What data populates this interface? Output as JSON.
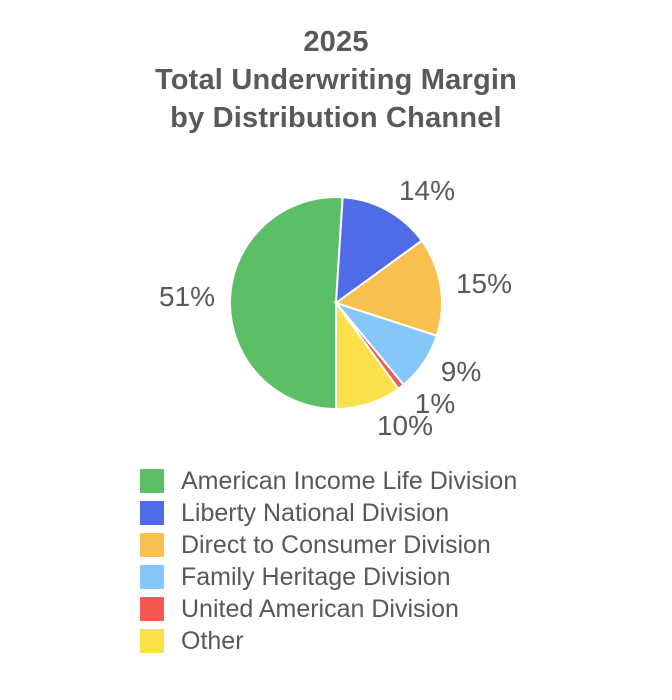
{
  "title": {
    "line1": "2025",
    "line2": "Total Underwriting Margin",
    "line3": "by Distribution Channel"
  },
  "chart_data": {
    "type": "pie",
    "title": "2025 Total Underwriting Margin by Distribution Channel",
    "start_angle_deg": 180,
    "direction": "clockwise",
    "total": 100,
    "legend_position": "bottom-left",
    "background_color": "#FFFFFF",
    "text_color": "#58595B",
    "slice_gap_color": "#FFFFFF",
    "slices": [
      {
        "name": "American Income Life Division",
        "value": 51,
        "label": "51%",
        "color": "#5CBE66"
      },
      {
        "name": "Liberty National Division",
        "value": 14,
        "label": "14%",
        "color": "#4F6BE8"
      },
      {
        "name": "Direct to Consumer Division",
        "value": 15,
        "label": "15%",
        "color": "#F8C04E"
      },
      {
        "name": "Family Heritage Division",
        "value": 9,
        "label": "9%",
        "color": "#85C7F6"
      },
      {
        "name": "United American Division",
        "value": 1,
        "label": "1%",
        "color": "#F2594E"
      },
      {
        "name": "Other",
        "value": 10,
        "label": "10%",
        "color": "#FAE14C"
      }
    ]
  }
}
